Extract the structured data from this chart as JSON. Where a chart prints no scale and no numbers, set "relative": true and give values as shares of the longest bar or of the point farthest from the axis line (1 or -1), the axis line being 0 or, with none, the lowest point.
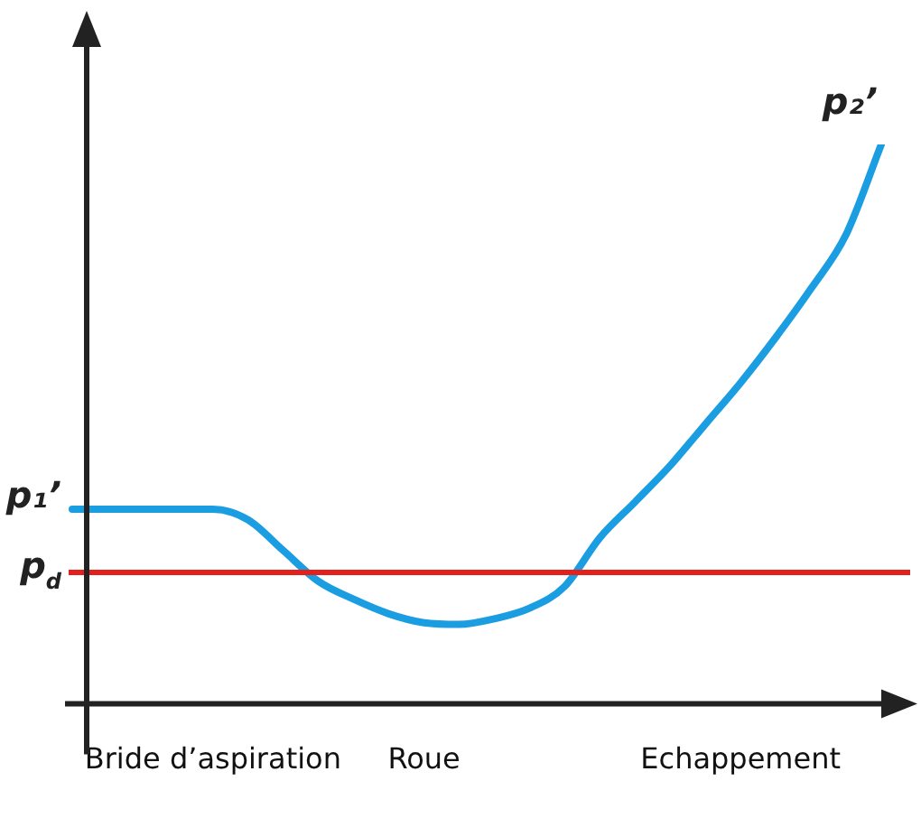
{
  "chart_data": {
    "type": "line",
    "relative": true,
    "legend": false,
    "grid": false,
    "marker": "none",
    "line_style": "solid",
    "categories": [
      null,
      null,
      null,
      null,
      "Bride d’aspiration",
      null,
      null,
      null,
      null,
      null,
      "Roue",
      null,
      null,
      null,
      null,
      null,
      null,
      null,
      null,
      "Echappement",
      null,
      null,
      null,
      null
    ],
    "series": [
      {
        "color": "#1b9de2",
        "values": [
          0.348,
          0.348,
          0.348,
          0.348,
          0.348,
          0.329,
          0.274,
          0.219,
          0.187,
          0.161,
          0.145,
          0.142,
          0.152,
          0.171,
          0.21,
          0.297,
          0.361,
          0.426,
          0.5,
          0.574,
          0.655,
          0.742,
          0.839,
          1
        ]
      }
    ],
    "ref_lines": [
      {
        "axis": "y",
        "value": 0.235,
        "label": "p$_{d}$",
        "color": "#e3201b",
        "line_style": "solid"
      }
    ],
    "annotations": [
      "p₁’",
      "p₂’"
    ]
  }
}
